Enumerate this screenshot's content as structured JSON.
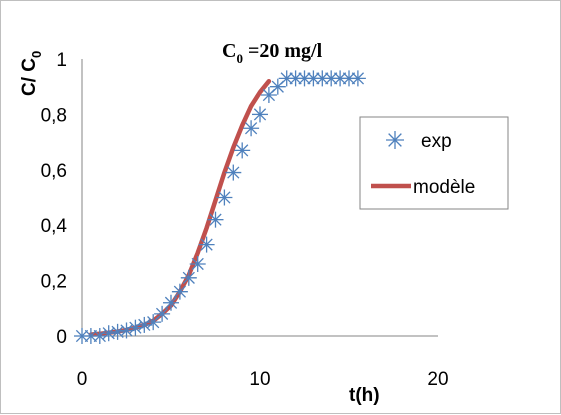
{
  "chart_data": {
    "type": "scatter",
    "title": "C0 =20 mg/l",
    "title_parts": {
      "main": "C",
      "sub": "0",
      "rest": " =20 mg/l"
    },
    "xlabel": "t(h)",
    "ylabel": "C/C0",
    "ylabel_parts": {
      "main": "C/ C",
      "sub": "0"
    },
    "xlim": [
      0,
      20
    ],
    "ylim": [
      0,
      1
    ],
    "xticks": [
      "0",
      "10",
      "20"
    ],
    "xtick_values": [
      0,
      10,
      20
    ],
    "yticks": [
      "0",
      "0,2",
      "0,4",
      "0,6",
      "0,8",
      "1"
    ],
    "ytick_values": [
      0,
      0.2,
      0.4,
      0.6,
      0.8,
      1
    ],
    "grid": false,
    "legend_position": "right",
    "series": [
      {
        "name": "exp",
        "kind": "markers",
        "marker": "asterisk",
        "color": "#4f81bd",
        "x": [
          0,
          0.5,
          1,
          1.5,
          2,
          2.5,
          3,
          3.5,
          4,
          4.5,
          5,
          5.5,
          6,
          6.5,
          7,
          7.5,
          8,
          8.5,
          9,
          9.5,
          10,
          10.5,
          11,
          11.5,
          12,
          12.5,
          13,
          13.5,
          14,
          14.5,
          15,
          15.5
        ],
        "y": [
          0,
          0,
          0,
          0.01,
          0.015,
          0.02,
          0.03,
          0.04,
          0.05,
          0.08,
          0.12,
          0.16,
          0.21,
          0.26,
          0.33,
          0.42,
          0.5,
          0.59,
          0.67,
          0.75,
          0.8,
          0.87,
          0.9,
          0.93,
          0.93,
          0.93,
          0.93,
          0.93,
          0.93,
          0.93,
          0.93,
          0.93
        ]
      },
      {
        "name": "modèle",
        "kind": "line",
        "color": "#c0504d",
        "x": [
          0.5,
          1,
          1.5,
          2,
          2.5,
          3,
          3.5,
          4,
          4.5,
          5,
          5.5,
          6,
          6.5,
          7,
          7.5,
          8,
          8.5,
          9,
          9.5,
          10,
          10.5
        ],
        "y": [
          0.005,
          0.008,
          0.012,
          0.016,
          0.022,
          0.03,
          0.04,
          0.055,
          0.08,
          0.11,
          0.16,
          0.22,
          0.3,
          0.39,
          0.49,
          0.59,
          0.68,
          0.76,
          0.83,
          0.88,
          0.92
        ]
      }
    ]
  }
}
